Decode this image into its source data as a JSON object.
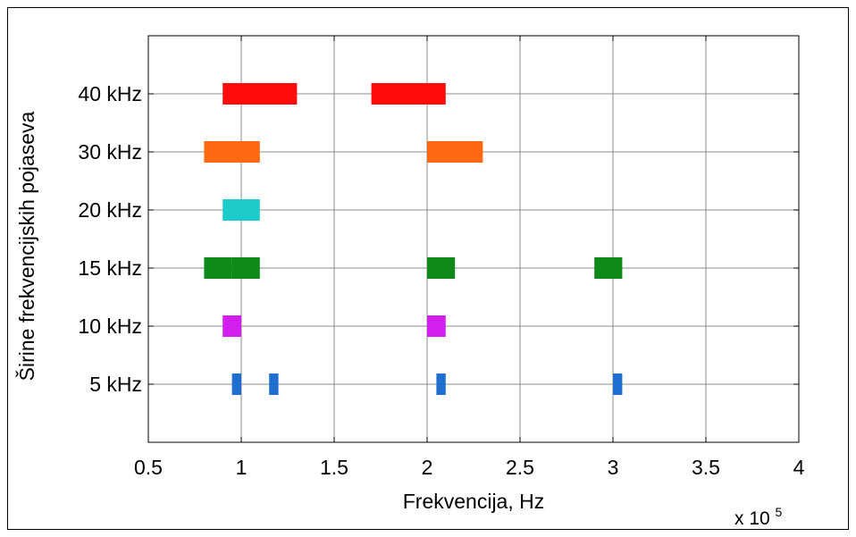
{
  "chart_data": {
    "type": "bar",
    "orientation": "horizontal-range",
    "xlabel": "Frekvencija, Hz",
    "ylabel": "Širine frekvencijskih pojaseva",
    "x_multiplier": {
      "base": "x 10",
      "exponent": "5"
    },
    "xlim": [
      0.5,
      4
    ],
    "x_ticks": [
      0.5,
      1,
      1.5,
      2,
      2.5,
      3,
      3.5,
      4
    ],
    "x_tick_labels": [
      "0.5",
      "1",
      "1.5",
      "2",
      "2.5",
      "3",
      "3.5",
      "4"
    ],
    "categories": [
      "5 kHz",
      "10 kHz",
      "15 kHz",
      "20 kHz",
      "30 kHz",
      "40 kHz"
    ],
    "grid": true,
    "series": [
      {
        "category": "5 kHz",
        "color": "#1f6fd1",
        "ranges": [
          [
            0.95,
            1.0
          ],
          [
            1.15,
            1.2
          ],
          [
            2.05,
            2.1
          ],
          [
            3.0,
            3.05
          ]
        ]
      },
      {
        "category": "10 kHz",
        "color": "#d31fef",
        "ranges": [
          [
            0.9,
            1.0
          ],
          [
            2.0,
            2.1
          ]
        ]
      },
      {
        "category": "15 kHz",
        "color": "#0f8a1a",
        "ranges": [
          [
            0.8,
            0.95
          ],
          [
            0.95,
            1.1
          ],
          [
            2.0,
            2.15
          ],
          [
            2.9,
            3.05
          ]
        ]
      },
      {
        "category": "20 kHz",
        "color": "#1ecbcb",
        "ranges": [
          [
            0.9,
            1.1
          ]
        ]
      },
      {
        "category": "30 kHz",
        "color": "#ff6a10",
        "ranges": [
          [
            0.8,
            1.1
          ],
          [
            2.0,
            2.3
          ]
        ]
      },
      {
        "category": "40 kHz",
        "color": "#ff0d0d",
        "ranges": [
          [
            0.9,
            1.3
          ],
          [
            1.7,
            2.1
          ]
        ]
      }
    ]
  }
}
